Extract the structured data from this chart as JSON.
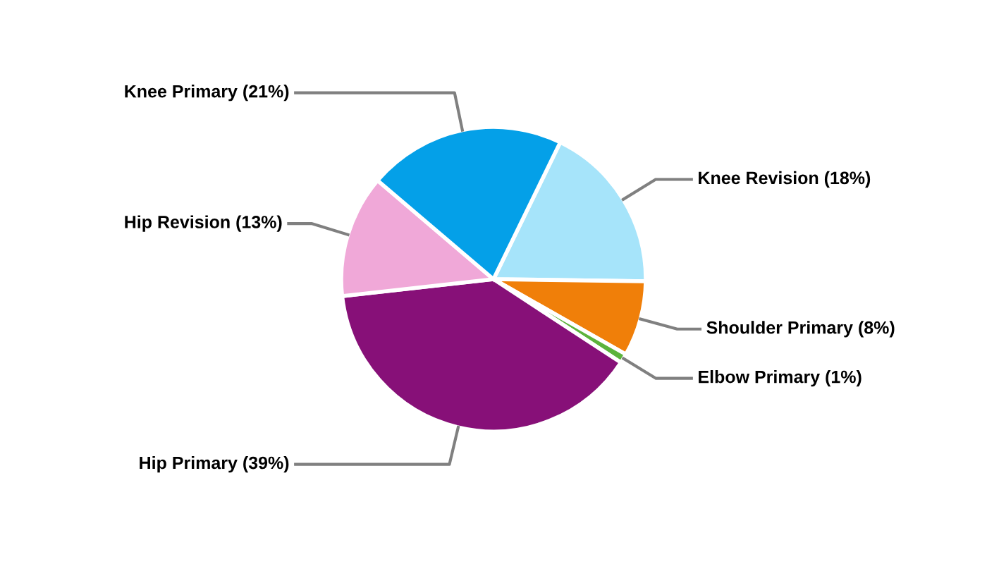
{
  "chart_data": {
    "type": "pie",
    "categories": [
      "Knee Revision (18%)",
      "Shoulder Primary (8%)",
      "Elbow Primary (1%)",
      "Hip Primary (39%)",
      "Hip Revision (13%)",
      "Knee Primary (21%)"
    ],
    "values": [
      18,
      8,
      1,
      39,
      13,
      21
    ],
    "colors": [
      "#a6e4fa",
      "#f07f09",
      "#5cb33c",
      "#871078",
      "#f0a8d8",
      "#04a0e8"
    ],
    "legend": false
  }
}
